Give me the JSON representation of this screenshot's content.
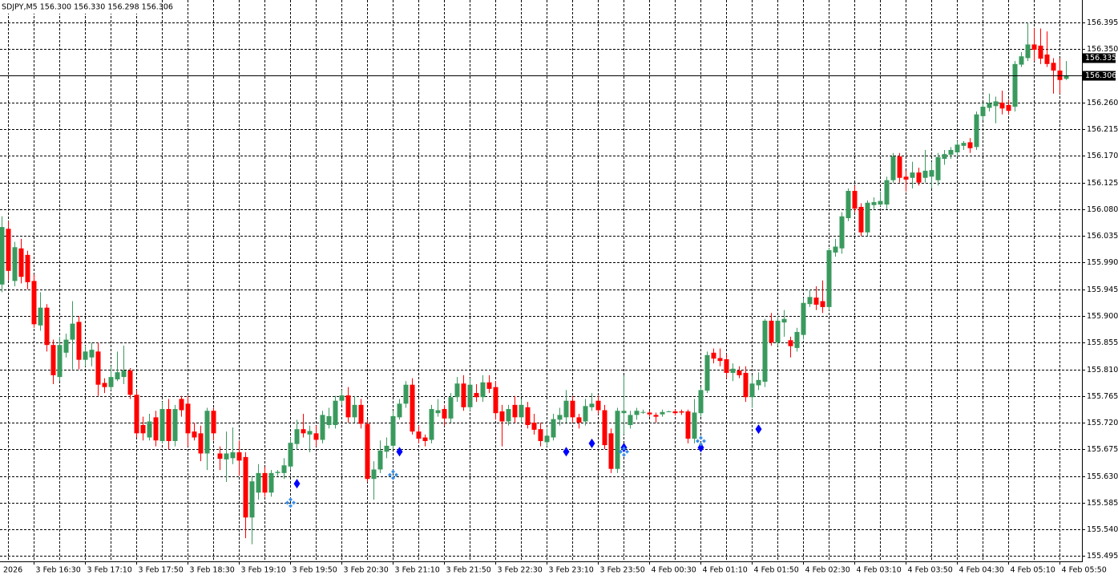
{
  "chart_data": {
    "type": "candlestick",
    "title": "SDJPY,M5  156.300 156.330 156.298 156.306",
    "x_edge_label": "2026",
    "categories": [
      null,
      null,
      null,
      null,
      null,
      "3 Feb 16:30",
      null,
      null,
      null,
      null,
      null,
      null,
      null,
      "3 Feb 17:10",
      null,
      null,
      null,
      null,
      null,
      null,
      null,
      "3 Feb 17:50",
      null,
      null,
      null,
      null,
      null,
      null,
      null,
      "3 Feb 18:30",
      null,
      null,
      null,
      null,
      null,
      null,
      null,
      "3 Feb 19:10",
      null,
      null,
      null,
      null,
      null,
      null,
      null,
      "3 Feb 19:50",
      null,
      null,
      null,
      null,
      null,
      null,
      null,
      "3 Feb 20:30",
      null,
      null,
      null,
      null,
      null,
      null,
      null,
      "3 Feb 21:10",
      null,
      null,
      null,
      null,
      null,
      null,
      null,
      "3 Feb 21:50",
      null,
      null,
      null,
      null,
      null,
      null,
      null,
      "3 Feb 22:30",
      null,
      null,
      null,
      null,
      null,
      null,
      null,
      "3 Feb 23:10",
      null,
      null,
      null,
      null,
      null,
      null,
      null,
      "3 Feb 23:50",
      null,
      null,
      null,
      null,
      null,
      null,
      null,
      "4 Feb 00:30",
      null,
      null,
      null,
      null,
      null,
      null,
      null,
      "4 Feb 01:10",
      null,
      null,
      null,
      null,
      null,
      null,
      null,
      "4 Feb 01:50",
      null,
      null,
      null,
      null,
      null,
      null,
      null,
      "4 Feb 02:30",
      null,
      null,
      null,
      null,
      null,
      null,
      null,
      "4 Feb 03:10",
      null,
      null,
      null,
      null,
      null,
      null,
      null,
      "4 Feb 03:50",
      null,
      null,
      null,
      null,
      null,
      null,
      null,
      "4 Feb 04:30",
      null,
      null,
      null,
      null,
      null,
      null,
      null,
      "4 Feb 05:10",
      null,
      null,
      null,
      null,
      null,
      null,
      null,
      "4 Feb 05:50",
      null
    ],
    "open": [
      155.953,
      156.047,
      155.959,
      156.014,
      156.003,
      155.959,
      155.884,
      155.914,
      155.851,
      155.797,
      155.838,
      155.86,
      155.89,
      155.826,
      155.83,
      155.84,
      155.787,
      155.78,
      155.793,
      155.797,
      155.808,
      155.767,
      155.716,
      155.695,
      155.729,
      155.689,
      155.743,
      155.689,
      155.76,
      155.752,
      155.705,
      155.702,
      155.668,
      155.74,
      155.668,
      155.658,
      155.66,
      155.67,
      155.662,
      155.56,
      155.602,
      155.635,
      155.602,
      155.635,
      155.635,
      155.646,
      155.684,
      155.709,
      155.7,
      155.702,
      155.691,
      155.716,
      155.716,
      155.757,
      155.766,
      155.729,
      155.75,
      155.718,
      155.625,
      155.641,
      155.671,
      155.681,
      155.729,
      155.752,
      155.784,
      155.705,
      155.695,
      155.691,
      155.736,
      155.743,
      155.727,
      155.763,
      155.786,
      155.746,
      155.77,
      155.763,
      155.788,
      155.78,
      155.739,
      155.722,
      155.75,
      155.729,
      155.746,
      155.72,
      155.709,
      155.687,
      155.695,
      155.725,
      155.729,
      155.757,
      155.729,
      155.722,
      155.746,
      155.757,
      155.741,
      155.702,
      155.642,
      155.736,
      155.716,
      155.733,
      155.738,
      155.737,
      155.733,
      155.734,
      155.739,
      155.739,
      155.739,
      155.739,
      155.693,
      155.736,
      155.774,
      155.838,
      155.829,
      155.827,
      155.804,
      155.808,
      155.804,
      155.763,
      155.783,
      155.789,
      155.892,
      155.855,
      155.889,
      155.859,
      155.846,
      155.868,
      155.92,
      155.931,
      155.925,
      155.915,
      156.007,
      156.014,
      156.065,
      156.111,
      156.084,
      156.041,
      156.087,
      156.088,
      156.088,
      156.129,
      156.169,
      156.135,
      156.133,
      156.142,
      156.133,
      156.135,
      156.129,
      156.165,
      156.172,
      156.176,
      156.187,
      156.193,
      156.185,
      156.237,
      156.251,
      156.254,
      156.26,
      156.256,
      156.253,
      156.324,
      156.335,
      156.358,
      156.356,
      156.341,
      156.327,
      156.314,
      156.3
    ],
    "high": [
      156.068,
      156.06,
      156.025,
      156.03,
      156.01,
      155.97,
      155.94,
      155.92,
      155.86,
      155.865,
      155.87,
      155.925,
      155.9,
      155.85,
      155.855,
      155.855,
      155.795,
      155.815,
      155.84,
      155.85,
      155.812,
      155.775,
      155.73,
      155.735,
      155.74,
      155.755,
      155.76,
      155.75,
      155.765,
      155.765,
      155.72,
      155.715,
      155.745,
      155.745,
      155.68,
      155.705,
      155.712,
      155.69,
      155.67,
      155.63,
      155.65,
      155.645,
      155.64,
      155.64,
      155.66,
      155.695,
      155.725,
      155.735,
      155.715,
      155.715,
      155.74,
      155.745,
      155.765,
      155.775,
      155.78,
      155.765,
      155.76,
      155.725,
      155.655,
      155.69,
      155.695,
      155.74,
      155.76,
      155.79,
      155.795,
      155.715,
      155.7,
      155.75,
      155.76,
      155.75,
      155.77,
      155.797,
      155.8,
      155.795,
      155.785,
      155.8,
      155.8,
      155.79,
      155.75,
      155.75,
      155.765,
      155.76,
      155.755,
      155.735,
      155.72,
      155.71,
      155.735,
      155.745,
      155.775,
      155.765,
      155.735,
      155.76,
      155.77,
      155.765,
      155.75,
      155.71,
      155.745,
      155.8,
      155.74,
      155.745,
      155.742,
      155.74,
      155.737,
      155.742,
      155.74,
      155.742,
      155.742,
      155.742,
      155.76,
      155.78,
      155.84,
      155.845,
      155.845,
      155.835,
      155.82,
      155.815,
      155.815,
      155.8,
      155.805,
      155.895,
      155.905,
      155.9,
      155.91,
      155.865,
      155.88,
      155.93,
      155.945,
      155.95,
      155.96,
      156.015,
      156.03,
      156.075,
      156.115,
      156.12,
      156.09,
      156.095,
      156.1,
      156.11,
      156.135,
      156.175,
      156.175,
      156.145,
      156.16,
      156.15,
      156.18,
      156.16,
      156.175,
      156.18,
      156.185,
      156.195,
      156.195,
      156.2,
      156.245,
      156.26,
      156.275,
      156.27,
      156.28,
      156.265,
      156.33,
      156.345,
      156.395,
      156.385,
      156.385,
      156.38,
      156.335,
      156.335,
      156.33
    ],
    "low": [
      155.94,
      155.96,
      155.95,
      155.955,
      155.945,
      155.88,
      155.875,
      155.84,
      155.785,
      155.79,
      155.83,
      155.81,
      155.81,
      155.815,
      155.815,
      155.765,
      155.77,
      155.775,
      155.79,
      155.785,
      155.76,
      155.695,
      155.69,
      155.69,
      155.68,
      155.685,
      155.675,
      155.68,
      155.73,
      155.68,
      155.69,
      155.655,
      155.64,
      155.69,
      155.64,
      155.62,
      155.65,
      155.63,
      155.525,
      155.515,
      155.59,
      155.595,
      155.595,
      155.63,
      155.625,
      155.64,
      155.675,
      155.695,
      155.67,
      155.68,
      155.685,
      155.71,
      155.71,
      155.75,
      155.72,
      155.72,
      155.71,
      155.62,
      155.59,
      155.635,
      155.66,
      155.675,
      155.725,
      155.745,
      155.7,
      155.685,
      155.68,
      155.685,
      155.73,
      155.715,
      155.72,
      155.755,
      155.74,
      155.74,
      155.755,
      155.755,
      155.77,
      155.725,
      155.68,
      155.715,
      155.72,
      155.72,
      155.71,
      155.7,
      155.68,
      155.68,
      155.69,
      155.715,
      155.72,
      155.72,
      155.71,
      155.715,
      155.74,
      155.735,
      155.675,
      155.635,
      155.635,
      155.7,
      155.71,
      155.725,
      155.735,
      155.73,
      155.72,
      155.73,
      155.738,
      155.732,
      155.733,
      155.685,
      155.685,
      155.73,
      155.77,
      155.82,
      155.815,
      155.795,
      155.79,
      155.795,
      155.755,
      155.745,
      155.775,
      155.78,
      155.85,
      155.85,
      155.865,
      155.83,
      155.84,
      155.86,
      155.915,
      155.91,
      155.905,
      155.91,
      156.0,
      156.005,
      156.06,
      156.075,
      156.035,
      156.035,
      156.08,
      156.085,
      156.08,
      156.125,
      156.125,
      156.11,
      156.115,
      156.12,
      156.125,
      156.115,
      156.12,
      156.155,
      156.165,
      156.17,
      156.18,
      156.175,
      156.18,
      156.23,
      156.245,
      156.225,
      156.24,
      156.24,
      156.245,
      156.32,
      156.33,
      156.33,
      156.325,
      156.32,
      156.275,
      156.275,
      156.298
    ],
    "close": [
      156.05,
      155.976,
      156.016,
      155.966,
      155.957,
      155.886,
      155.914,
      155.851,
      155.8,
      155.851,
      155.86,
      155.887,
      155.826,
      155.84,
      155.843,
      155.784,
      155.78,
      155.797,
      155.805,
      155.808,
      155.767,
      155.702,
      155.702,
      155.722,
      155.69,
      155.743,
      155.689,
      155.743,
      155.741,
      155.702,
      155.695,
      155.668,
      155.74,
      155.702,
      155.659,
      155.668,
      155.67,
      155.656,
      155.56,
      155.621,
      155.635,
      155.602,
      155.635,
      155.637,
      155.648,
      155.686,
      155.709,
      155.702,
      155.706,
      155.691,
      155.733,
      155.731,
      155.757,
      155.766,
      155.729,
      155.75,
      155.718,
      155.625,
      155.641,
      155.673,
      155.681,
      155.731,
      155.752,
      155.784,
      155.705,
      155.693,
      155.689,
      155.743,
      155.741,
      155.727,
      155.763,
      155.786,
      155.746,
      155.784,
      155.763,
      155.788,
      155.777,
      155.736,
      155.722,
      155.743,
      155.729,
      155.75,
      155.716,
      155.708,
      155.689,
      155.698,
      155.726,
      155.733,
      155.757,
      155.729,
      155.72,
      155.748,
      155.752,
      155.741,
      155.682,
      155.642,
      155.74,
      155.74,
      155.733,
      155.74,
      155.738,
      155.734,
      155.73,
      155.738,
      155.739,
      155.736,
      155.737,
      155.693,
      155.737,
      155.775,
      155.834,
      155.828,
      155.824,
      155.804,
      155.811,
      155.8,
      155.763,
      155.786,
      155.792,
      155.892,
      155.855,
      155.892,
      155.895,
      155.849,
      155.873,
      155.922,
      155.932,
      155.919,
      155.915,
      156.011,
      156.017,
      156.068,
      156.111,
      156.081,
      156.041,
      156.091,
      156.092,
      156.094,
      156.129,
      156.169,
      156.133,
      156.13,
      156.142,
      156.125,
      156.145,
      156.146,
      156.168,
      156.173,
      156.18,
      156.189,
      156.192,
      156.183,
      156.24,
      156.253,
      156.259,
      156.262,
      156.25,
      156.246,
      156.325,
      156.338,
      156.358,
      156.349,
      156.334,
      156.325,
      156.314,
      156.298,
      156.306
    ],
    "up_color": "#3a9a5e",
    "down_color": "#ff0000",
    "diamonds": {
      "color": "#0000ff",
      "index": [
        46,
        62,
        88,
        92,
        97,
        109,
        118
      ],
      "values": [
        155.617,
        155.671,
        155.671,
        155.685,
        155.678,
        155.678,
        155.709
      ]
    },
    "crosses": {
      "color": "#3a8ee6",
      "index": [
        45,
        61,
        97,
        109
      ],
      "values": [
        155.585,
        155.632,
        155.671,
        155.689
      ]
    },
    "price_labels": [
      {
        "value": 156.335,
        "label": "156.335",
        "line": false
      },
      {
        "value": 156.306,
        "label": "156.306",
        "line": true
      }
    ],
    "ylim": [
      155.486,
      156.433
    ],
    "yticks": [
      155.495,
      {
        "value": 155.54,
        "label": "155.540"
      },
      155.585,
      {
        "value": 155.63,
        "label": "155.630"
      },
      155.675,
      {
        "value": 155.72,
        "label": "155.720"
      },
      155.765,
      {
        "value": 155.81,
        "label": "155.810"
      },
      155.855,
      {
        "value": 155.9,
        "label": "155.900"
      },
      155.945,
      {
        "value": 155.99,
        "label": "155.990"
      },
      156.035,
      {
        "value": 156.08,
        "label": "156.080"
      },
      156.125,
      {
        "value": 156.17,
        "label": "156.170"
      },
      156.215,
      {
        "value": 156.26,
        "label": "156.260"
      },
      {
        "value": 156.35,
        "label": "156.350"
      },
      156.395
    ],
    "grid": true
  }
}
